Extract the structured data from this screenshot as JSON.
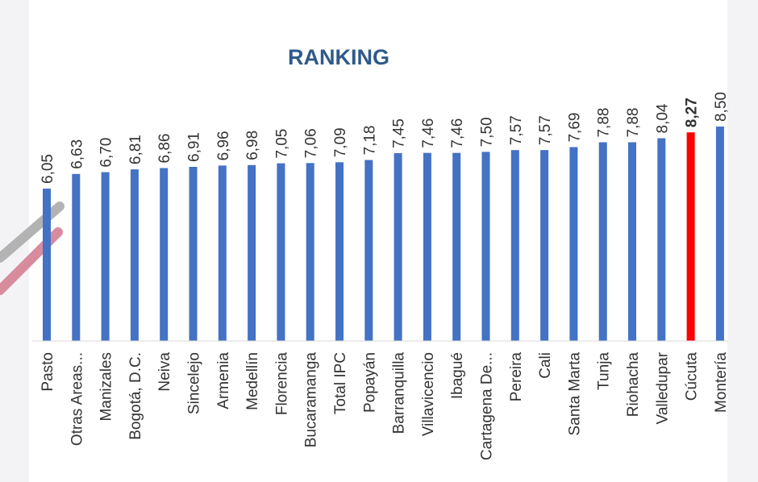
{
  "chart_data": {
    "type": "bar",
    "title": "RANKING",
    "xlabel": "",
    "ylabel": "",
    "categories": [
      "Pasto",
      "Otras Areas...",
      "Manizales",
      "Bogotá, D.C.",
      "Neiva",
      "Sincelejo",
      "Armenia",
      "Medellín",
      "Florencia",
      "Bucaramanga",
      "Total IPC",
      "Popayán",
      "Barranquilla",
      "Villavicencio",
      "Ibagué",
      "Cartagena De...",
      "Pereira",
      "Cali",
      "Santa Marta",
      "Tunja",
      "Riohacha",
      "Valledupar",
      "Cúcuta",
      "Montería"
    ],
    "values": [
      6.05,
      6.63,
      6.7,
      6.81,
      6.86,
      6.91,
      6.96,
      6.98,
      7.05,
      7.06,
      7.09,
      7.18,
      7.45,
      7.46,
      7.46,
      7.5,
      7.57,
      7.57,
      7.69,
      7.88,
      7.88,
      8.04,
      8.27,
      8.5
    ],
    "value_labels": [
      "6,05",
      "6,63",
      "6,70",
      "6,81",
      "6,86",
      "6,91",
      "6,96",
      "6,98",
      "7,05",
      "7,06",
      "7,09",
      "7,18",
      "7,45",
      "7,46",
      "7,46",
      "7,50",
      "7,57",
      "7,57",
      "7,69",
      "7,88",
      "7,88",
      "8,04",
      "8,27",
      "8,50"
    ],
    "highlight": "Cúcuta",
    "colors": {
      "bar": "#4472c4",
      "highlight": "#ff0000",
      "title": "#2f5a8a"
    },
    "grid": false,
    "legend": "none",
    "value_axis_hidden": true
  }
}
